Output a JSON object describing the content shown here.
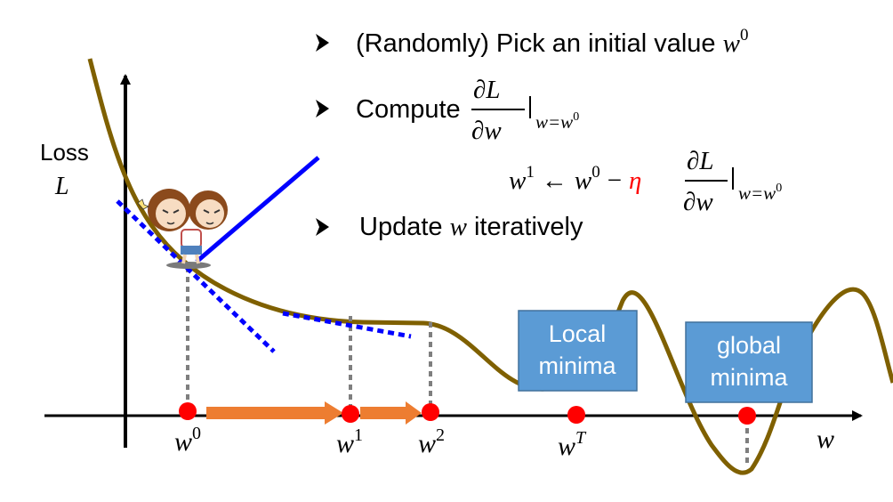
{
  "bullets": [
    {
      "text": "(Randomly) Pick an initial value ",
      "var": "w",
      "sup": "0"
    },
    {
      "text": "Compute "
    },
    {
      "text": "Update ",
      "var": "w",
      "after": " iteratively"
    }
  ],
  "derivative": {
    "numerator": "∂L",
    "denominator": "∂w",
    "condition_base": "w=w",
    "condition_sup": "0"
  },
  "update_rule": {
    "lhs": "w",
    "lhs_sup": "1",
    "arrow": "←",
    "w": "w",
    "w_sup": "0",
    "minus": "−",
    "eta": "η",
    "eta_color": "#ff0000"
  },
  "axes": {
    "y_label_1": "Loss",
    "y_label_2": "L",
    "x_label": "w"
  },
  "ticks": [
    {
      "base": "w",
      "sup": "0"
    },
    {
      "base": "w",
      "sup": "1"
    },
    {
      "base": "w",
      "sup": "2"
    },
    {
      "base": "w",
      "sup": "T"
    }
  ],
  "boxes": {
    "local": {
      "line1": "Local",
      "line2": "minima"
    },
    "global": {
      "line1": "global",
      "line2": "minima"
    }
  },
  "colors": {
    "curve": "#7f6000",
    "tangent": "#0000ff",
    "arrow": "#ed7d31",
    "point": "#ff0000",
    "box": "#5b9bd5"
  }
}
